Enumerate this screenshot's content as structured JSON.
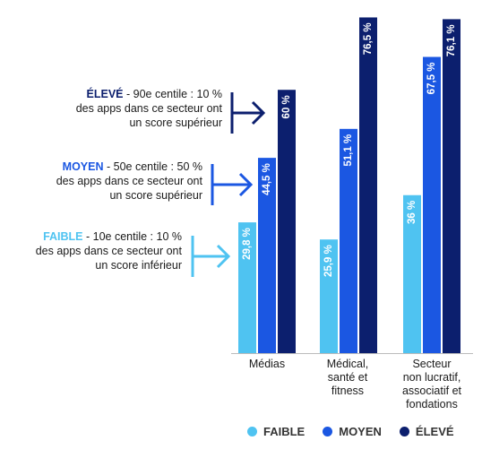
{
  "chart_data": {
    "type": "bar",
    "categories": [
      [
        "Médias"
      ],
      [
        "Médical,",
        "santé et",
        "fitness"
      ],
      [
        "Secteur",
        "non lucratif,",
        "associatif et",
        "fondations"
      ]
    ],
    "series": [
      {
        "name": "FAIBLE",
        "color": "#4fc3f1",
        "values": [
          29.8,
          25.9,
          36.0
        ],
        "labels": [
          "29,8 %",
          "25,9 %",
          "36 %"
        ]
      },
      {
        "name": "MOYEN",
        "color": "#1b57e2",
        "values": [
          44.5,
          51.1,
          67.5
        ],
        "labels": [
          "44,5 %",
          "51,1 %",
          "67,5 %"
        ]
      },
      {
        "name": "ÉLEVÉ",
        "color": "#0c1f6e",
        "values": [
          60.0,
          76.5,
          76.1
        ],
        "labels": [
          "60 %",
          "76,5 %",
          "76,1 %"
        ]
      }
    ],
    "ylim": [
      0,
      77
    ],
    "grid": false,
    "legend": "bottom"
  },
  "annotations": [
    {
      "series": "ÉLEVÉ",
      "key": "ÉLEVÉ",
      "text1": " - 90e centile : 10 %",
      "text2": "des apps dans ce secteur ont",
      "text3": "un score supérieur",
      "color": "#0c1f6e"
    },
    {
      "series": "MOYEN",
      "key": "MOYEN",
      "text1": " - 50e centile : 50 %",
      "text2": "des apps dans ce secteur ont",
      "text3": "un score supérieur",
      "color": "#1b57e2"
    },
    {
      "series": "FAIBLE",
      "key": "FAIBLE",
      "text1": " - 10e centile : 10 %",
      "text2": "des apps dans ce secteur ont",
      "text3": "un score inférieur",
      "color": "#4fc3f1"
    }
  ],
  "legend": [
    {
      "label": "FAIBLE",
      "color": "#4fc3f1"
    },
    {
      "label": "MOYEN",
      "color": "#1b57e2"
    },
    {
      "label": "ÉLEVÉ",
      "color": "#0c1f6e"
    }
  ]
}
